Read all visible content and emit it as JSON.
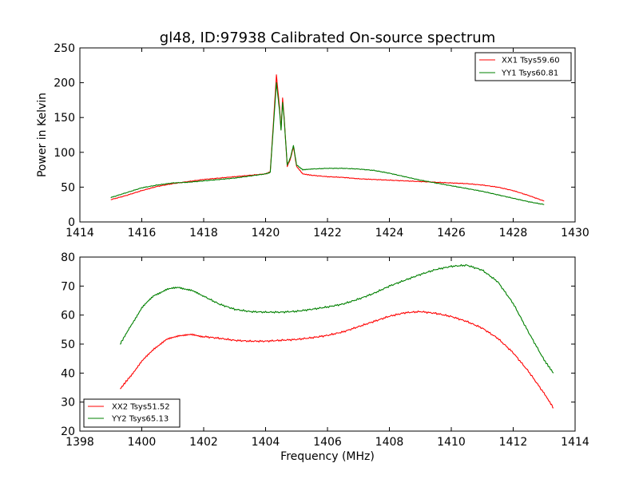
{
  "colors": {
    "red": "#ff0000",
    "green": "#008000",
    "axis": "#000000",
    "background": "#ffffff"
  },
  "chart_data": [
    {
      "type": "line",
      "title": "gl48, ID:97938 Calibrated On-source spectrum",
      "xlabel": "",
      "ylabel": "Power in Kelvin",
      "xlim": [
        1414,
        1430
      ],
      "ylim": [
        0,
        250
      ],
      "xticks": [
        1414,
        1416,
        1418,
        1420,
        1422,
        1424,
        1426,
        1428,
        1430
      ],
      "yticks": [
        0,
        50,
        100,
        150,
        200,
        250
      ],
      "grid": false,
      "legend": "top-right",
      "series": [
        {
          "name": "XX1 Tsys59.60",
          "color": "#ff0000",
          "x": [
            1415.0,
            1415.5,
            1416.0,
            1416.5,
            1417.0,
            1417.5,
            1418.0,
            1418.5,
            1419.0,
            1419.5,
            1420.0,
            1420.15,
            1420.25,
            1420.35,
            1420.45,
            1420.5,
            1420.55,
            1420.6,
            1420.7,
            1420.8,
            1420.9,
            1421.0,
            1421.2,
            1421.5,
            1422.0,
            1422.5,
            1423.0,
            1423.5,
            1424.0,
            1424.5,
            1425.0,
            1425.5,
            1426.0,
            1426.5,
            1427.0,
            1427.5,
            1428.0,
            1428.5,
            1429.0
          ],
          "y": [
            32,
            38,
            45,
            51,
            55,
            58,
            61,
            63,
            65,
            67,
            69,
            72,
            140,
            211,
            165,
            133,
            178,
            150,
            80,
            90,
            108,
            80,
            69,
            67,
            65,
            64,
            62,
            61,
            60,
            59,
            58,
            57,
            56,
            55,
            53,
            50,
            45,
            38,
            30
          ]
        },
        {
          "name": "YY1 Tsys60.81",
          "color": "#008000",
          "x": [
            1415.0,
            1415.5,
            1416.0,
            1416.5,
            1417.0,
            1417.5,
            1418.0,
            1418.5,
            1419.0,
            1419.5,
            1420.0,
            1420.15,
            1420.25,
            1420.35,
            1420.45,
            1420.5,
            1420.55,
            1420.6,
            1420.7,
            1420.8,
            1420.9,
            1421.0,
            1421.2,
            1421.5,
            1422.0,
            1422.5,
            1423.0,
            1423.5,
            1424.0,
            1424.5,
            1425.0,
            1425.5,
            1426.0,
            1426.5,
            1427.0,
            1427.5,
            1428.0,
            1428.5,
            1429.0
          ],
          "y": [
            35,
            42,
            49,
            53,
            56,
            57,
            59,
            61,
            63,
            66,
            69,
            71,
            135,
            200,
            160,
            132,
            172,
            148,
            82,
            92,
            110,
            82,
            75,
            76,
            77,
            77,
            76,
            74,
            70,
            65,
            60,
            56,
            52,
            48,
            44,
            39,
            34,
            29,
            25
          ]
        }
      ]
    },
    {
      "type": "line",
      "title": "",
      "xlabel": "Frequency (MHz)",
      "ylabel": "",
      "xlim": [
        1398,
        1414
      ],
      "ylim": [
        20,
        80
      ],
      "xticks": [
        1398,
        1400,
        1402,
        1404,
        1406,
        1408,
        1410,
        1412,
        1414
      ],
      "yticks": [
        20,
        30,
        40,
        50,
        60,
        70,
        80
      ],
      "grid": false,
      "legend": "bottom-left",
      "series": [
        {
          "name": "XX2 Tsys51.52",
          "color": "#ff0000",
          "x": [
            1399.3,
            1399.6,
            1400.0,
            1400.4,
            1400.8,
            1401.2,
            1401.6,
            1402.0,
            1402.5,
            1403.0,
            1403.5,
            1404.0,
            1404.5,
            1405.0,
            1405.5,
            1406.0,
            1406.5,
            1407.0,
            1407.5,
            1408.0,
            1408.5,
            1409.0,
            1409.5,
            1410.0,
            1410.5,
            1411.0,
            1411.5,
            1412.0,
            1412.5,
            1413.0,
            1413.3
          ],
          "y": [
            34.5,
            38.5,
            44,
            48.5,
            51.5,
            53,
            53.2,
            52.6,
            52,
            51.3,
            51,
            51,
            51.3,
            51.6,
            52.2,
            53,
            54.2,
            56,
            57.8,
            59.6,
            60.8,
            61.2,
            60.6,
            59.5,
            57.8,
            55.5,
            52,
            47,
            40.5,
            33,
            28
          ]
        },
        {
          "name": "YY2 Tsys65.13",
          "color": "#008000",
          "x": [
            1399.3,
            1399.6,
            1400.0,
            1400.4,
            1400.8,
            1401.2,
            1401.6,
            1402.0,
            1402.5,
            1403.0,
            1403.5,
            1404.0,
            1404.5,
            1405.0,
            1405.5,
            1406.0,
            1406.5,
            1407.0,
            1407.5,
            1408.0,
            1408.5,
            1409.0,
            1409.5,
            1410.0,
            1410.5,
            1411.0,
            1411.5,
            1412.0,
            1412.5,
            1413.0,
            1413.3
          ],
          "y": [
            50,
            55.5,
            62.5,
            66.8,
            68.8,
            69.6,
            68.5,
            66.5,
            63.8,
            62,
            61.2,
            61,
            61,
            61.3,
            62,
            62.8,
            63.8,
            65.5,
            67.5,
            70,
            72,
            74,
            75.7,
            76.8,
            77.2,
            75.5,
            71.5,
            64,
            54,
            44.5,
            40
          ]
        }
      ]
    }
  ]
}
